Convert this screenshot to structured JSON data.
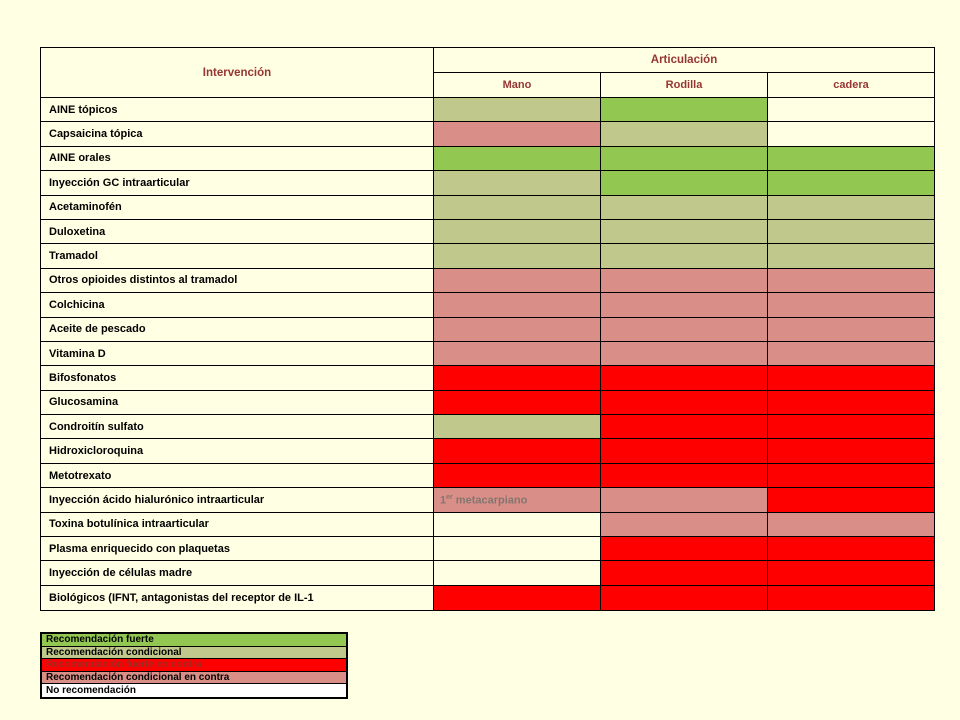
{
  "slide": {
    "background": "#FFFFE3"
  },
  "colors": {
    "strong": "#92C851",
    "conditional": "#C0C98B",
    "strong_against": "#FF0000",
    "conditional_against": "#D98F88",
    "none": "transparent",
    "legend_none_bg": "#FFFFFF",
    "header_text": "#963634",
    "note_text": "#84756F",
    "legend_strong_against_text": "#9E2B25"
  },
  "table": {
    "header": {
      "intervention": "Intervención",
      "joint_group": "Articulación",
      "joints": [
        "Mano",
        "Rodilla",
        "cadera"
      ]
    },
    "rows": [
      {
        "label": "AINE tópicos",
        "cells": [
          "conditional",
          "strong",
          "none"
        ]
      },
      {
        "label": "Capsaicina tópica",
        "cells": [
          "conditional_against",
          "conditional",
          "none"
        ]
      },
      {
        "label": "AINE orales",
        "cells": [
          "strong",
          "strong",
          "strong"
        ]
      },
      {
        "label": "Inyección GC intraarticular",
        "cells": [
          "conditional",
          "strong",
          "strong"
        ]
      },
      {
        "label": "Acetaminofén",
        "cells": [
          "conditional",
          "conditional",
          "conditional"
        ]
      },
      {
        "label": "Duloxetina",
        "cells": [
          "conditional",
          "conditional",
          "conditional"
        ]
      },
      {
        "label": "Tramadol",
        "cells": [
          "conditional",
          "conditional",
          "conditional"
        ]
      },
      {
        "label": "Otros opioides distintos al tramadol",
        "cells": [
          "conditional_against",
          "conditional_against",
          "conditional_against"
        ]
      },
      {
        "label": "Colchicina",
        "cells": [
          "conditional_against",
          "conditional_against",
          "conditional_against"
        ]
      },
      {
        "label": "Aceite de pescado",
        "cells": [
          "conditional_against",
          "conditional_against",
          "conditional_against"
        ]
      },
      {
        "label": "Vitamina D",
        "cells": [
          "conditional_against",
          "conditional_against",
          "conditional_against"
        ]
      },
      {
        "label": "Bifosfonatos",
        "cells": [
          "strong_against",
          "strong_against",
          "strong_against"
        ]
      },
      {
        "label": "Glucosamina",
        "cells": [
          "strong_against",
          "strong_against",
          "strong_against"
        ]
      },
      {
        "label": "Condroitín sulfato",
        "cells": [
          "conditional",
          "strong_against",
          "strong_against"
        ]
      },
      {
        "label": "Hidroxicloroquina",
        "cells": [
          "strong_against",
          "strong_against",
          "strong_against"
        ]
      },
      {
        "label": "Metotrexato",
        "cells": [
          "strong_against",
          "strong_against",
          "strong_against"
        ]
      },
      {
        "label": "Inyección ácido hialurónico intraarticular",
        "cells": [
          "conditional_against",
          "conditional_against",
          "strong_against"
        ],
        "note": {
          "col": 0,
          "prefix": "1",
          "sup": "er",
          "text": " metacarpiano"
        }
      },
      {
        "label": "Toxina botulínica intraarticular",
        "cells": [
          "none",
          "conditional_against",
          "conditional_against"
        ]
      },
      {
        "label": "Plasma enriquecido con plaquetas",
        "cells": [
          "none",
          "strong_against",
          "strong_against"
        ]
      },
      {
        "label": "Inyección de células madre",
        "cells": [
          "none",
          "strong_against",
          "strong_against"
        ]
      },
      {
        "label": "Biológicos (IFNT, antagonistas del receptor de IL-1",
        "cells": [
          "strong_against",
          "strong_against",
          "strong_against"
        ]
      }
    ]
  },
  "legend": {
    "items": [
      {
        "label": "Recomendación fuerte",
        "key": "strong"
      },
      {
        "label": "Recomendación condicional",
        "key": "conditional"
      },
      {
        "label": "Recomendación fuerte en contra",
        "key": "strong_against"
      },
      {
        "label": "Recomendación condicional en contra",
        "key": "conditional_against"
      },
      {
        "label": "No recomendación",
        "key": "none"
      }
    ]
  }
}
